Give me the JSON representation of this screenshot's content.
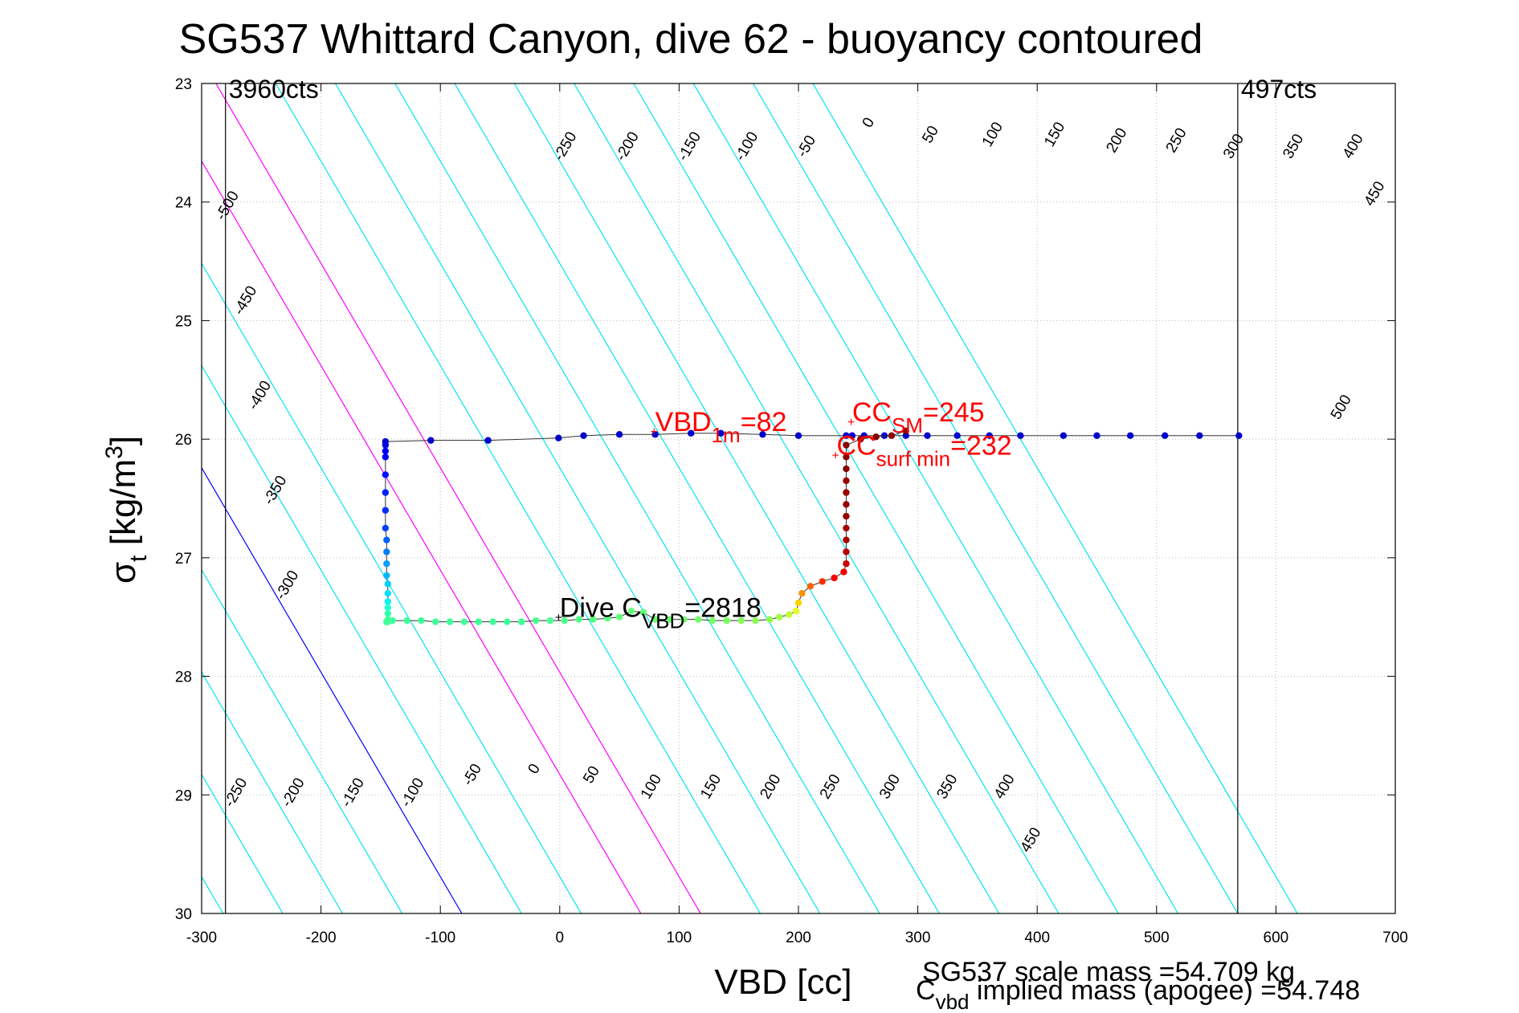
{
  "chart_data": {
    "type": "scatter",
    "title": "SG537 Whittard Canyon, dive 62 - buoyancy contoured",
    "xlabel": "VBD [cc]",
    "ylabel_main": "σ",
    "ylabel_sub": "t",
    "ylabel_unit": " [kg/m",
    "ylabel_sup": "3",
    "ylabel_close": "]",
    "xlim": [
      -300,
      700
    ],
    "ylim": [
      23,
      30
    ],
    "y_reversed": true,
    "grid": true,
    "x_ticks": [
      -300,
      -200,
      -100,
      0,
      100,
      200,
      300,
      400,
      500,
      600,
      700
    ],
    "y_ticks": [
      23,
      24,
      25,
      26,
      27,
      28,
      29,
      30
    ],
    "contour_slope_cc_per_sigma": 58,
    "contour_zero_x_at_sigma30": -82,
    "contour_levels": [
      -500,
      -450,
      -400,
      -350,
      -300,
      -250,
      -200,
      -150,
      -100,
      -50,
      0,
      50,
      100,
      150,
      200,
      250,
      300,
      350,
      400,
      450,
      500
    ],
    "contour_colors": {
      "default": "#00e5ee",
      "zero": "#0000ff",
      "highlight": "#ff00ff"
    },
    "highlight_levels": [
      150,
      200
    ],
    "upper_labels": [
      {
        "level": -500,
        "x": -275,
        "y": 24.05
      },
      {
        "level": -450,
        "x": -260,
        "y": 24.85
      },
      {
        "level": -400,
        "x": -248,
        "y": 25.65
      },
      {
        "level": -350,
        "x": -235,
        "y": 26.45
      },
      {
        "level": -300,
        "x": -225,
        "y": 27.25
      },
      {
        "level": -250,
        "x": 8,
        "y": 23.55
      },
      {
        "level": -200,
        "x": 60,
        "y": 23.55
      },
      {
        "level": -150,
        "x": 112,
        "y": 23.55
      },
      {
        "level": -100,
        "x": 160,
        "y": 23.55
      },
      {
        "level": -50,
        "x": 210,
        "y": 23.55
      },
      {
        "level": 0,
        "x": 262,
        "y": 23.35
      },
      {
        "level": 50,
        "x": 314,
        "y": 23.45
      },
      {
        "level": 100,
        "x": 366,
        "y": 23.45
      },
      {
        "level": 150,
        "x": 418,
        "y": 23.45
      },
      {
        "level": 200,
        "x": 470,
        "y": 23.5
      },
      {
        "level": 250,
        "x": 520,
        "y": 23.5
      },
      {
        "level": 300,
        "x": 568,
        "y": 23.55
      },
      {
        "level": 350,
        "x": 618,
        "y": 23.55
      },
      {
        "level": 400,
        "x": 668,
        "y": 23.55
      },
      {
        "level": 450,
        "x": 686,
        "y": 23.95
      },
      {
        "level": 500,
        "x": 658,
        "y": 25.75
      }
    ],
    "lower_labels": [
      {
        "level": -250,
        "x": -268,
        "y": 29.0
      },
      {
        "level": -200,
        "x": -220,
        "y": 29.0
      },
      {
        "level": -150,
        "x": -170,
        "y": 29.0
      },
      {
        "level": -100,
        "x": -120,
        "y": 29.0
      },
      {
        "level": -50,
        "x": -70,
        "y": 28.85
      },
      {
        "level": 0,
        "x": -18,
        "y": 28.8
      },
      {
        "level": 50,
        "x": 30,
        "y": 28.85
      },
      {
        "level": 100,
        "x": 80,
        "y": 28.95
      },
      {
        "level": 150,
        "x": 130,
        "y": 28.95
      },
      {
        "level": 200,
        "x": 180,
        "y": 28.95
      },
      {
        "level": 250,
        "x": 230,
        "y": 28.95
      },
      {
        "level": 300,
        "x": 280,
        "y": 28.95
      },
      {
        "level": 350,
        "x": 328,
        "y": 28.95
      },
      {
        "level": 400,
        "x": 376,
        "y": 28.95
      },
      {
        "level": 450,
        "x": 398,
        "y": 29.4
      }
    ],
    "vlines": [
      {
        "x": -280,
        "label": "3960cts"
      },
      {
        "x": 568,
        "label": "497cts"
      }
    ],
    "series": [
      {
        "x": [
          569,
          536,
          507,
          478,
          450,
          422,
          386,
          360,
          333,
          308,
          290,
          272,
          255,
          245,
          240,
          200,
          170,
          135,
          110,
          80,
          50,
          20,
          -1,
          -60,
          -108,
          -146,
          -146,
          -146,
          -146,
          -146,
          -146,
          -146,
          -146,
          -145,
          -145,
          -145,
          -145,
          -144,
          -144,
          -144,
          -144,
          -144,
          -144,
          -144,
          -144,
          -145,
          -145,
          -145,
          -145,
          -145
        ],
        "y": [
          25.97,
          25.97,
          25.97,
          25.97,
          25.97,
          25.97,
          25.97,
          25.97,
          25.97,
          25.97,
          25.97,
          25.97,
          25.97,
          25.97,
          25.97,
          25.97,
          25.96,
          25.95,
          25.95,
          25.96,
          25.96,
          25.97,
          25.99,
          26.01,
          26.01,
          26.02,
          26.05,
          26.1,
          26.15,
          26.3,
          26.45,
          26.6,
          26.75,
          26.85,
          26.95,
          27.05,
          27.15,
          27.22,
          27.3,
          27.37,
          27.42,
          27.47,
          27.52,
          27.53,
          27.54,
          27.54,
          27.54,
          27.54,
          27.54,
          27.54
        ],
        "colors": [
          "#0000cc",
          "#0000cc",
          "#0000cc",
          "#0000cc",
          "#0000cc",
          "#0000cc",
          "#0000cc",
          "#0000cc",
          "#0000cc",
          "#0000cc",
          "#0000cc",
          "#0000cc",
          "#0000cc",
          "#0000cc",
          "#0000cc",
          "#0000cc",
          "#0000cc",
          "#0000cc",
          "#0000cc",
          "#0000cc",
          "#0000cc",
          "#0000cc",
          "#0000cc",
          "#0000cc",
          "#0000cc",
          "#0000cc",
          "#0000dd",
          "#0000ee",
          "#0000ff",
          "#0010ff",
          "#0020ff",
          "#0030ff",
          "#0040ff",
          "#0060ff",
          "#0080ff",
          "#00a0ff",
          "#00b8ff",
          "#00cfff",
          "#00e0ff",
          "#10f0f0",
          "#20ffd0",
          "#30ffb0",
          "#40ff9a",
          "#40ff9a",
          "#40ff9a",
          "#40ff9a",
          "#40ff9a",
          "#40ff9a",
          "#40ff9a",
          "#40ff9a"
        ]
      },
      {
        "x": [
          -140,
          -128,
          -116,
          -104,
          -92,
          -80,
          -68,
          -56,
          -44,
          -32,
          -20,
          -8,
          4,
          16,
          28,
          40,
          50,
          60,
          70,
          80,
          92,
          104,
          116,
          128,
          140,
          152,
          164,
          176,
          184,
          192,
          198,
          200,
          203,
          210,
          220,
          230,
          238,
          240,
          240,
          240,
          240,
          240,
          240,
          240,
          240,
          240,
          240,
          240,
          252,
          265,
          278,
          290
        ],
        "y": [
          27.53,
          27.53,
          27.53,
          27.54,
          27.54,
          27.54,
          27.54,
          27.54,
          27.54,
          27.54,
          27.53,
          27.53,
          27.53,
          27.52,
          27.52,
          27.51,
          27.5,
          27.45,
          27.46,
          27.52,
          27.52,
          27.52,
          27.52,
          27.53,
          27.53,
          27.53,
          27.53,
          27.52,
          27.5,
          27.48,
          27.45,
          27.38,
          27.3,
          27.24,
          27.2,
          27.17,
          27.12,
          27.05,
          26.95,
          26.85,
          26.75,
          26.65,
          26.55,
          26.45,
          26.35,
          26.25,
          26.15,
          26.05,
          26.0,
          25.98,
          25.97,
          25.93
        ],
        "colors": [
          "#40ff9a",
          "#40ff9a",
          "#40ff9a",
          "#40ff9a",
          "#40ff9a",
          "#40ff9a",
          "#40ff9a",
          "#40ff9a",
          "#40ff9a",
          "#40ff9a",
          "#48ff90",
          "#48ff90",
          "#50ff88",
          "#50ff88",
          "#58ff80",
          "#58ff80",
          "#60ff78",
          "#60ff78",
          "#60ff78",
          "#68ff70",
          "#68ff70",
          "#70ff68",
          "#70ff68",
          "#78ff60",
          "#78ff60",
          "#80ff58",
          "#88ff50",
          "#90ff48",
          "#a0ff40",
          "#c0ff30",
          "#e0ff20",
          "#ffd000",
          "#ff9000",
          "#ff6000",
          "#ff3000",
          "#ff0000",
          "#ee0000",
          "#cc0000",
          "#bb0000",
          "#aa0000",
          "#aa0000",
          "#990000",
          "#990000",
          "#990000",
          "#990000",
          "#880000",
          "#880000",
          "#880000",
          "#880000",
          "#880000",
          "#880000",
          "#880000"
        ]
      }
    ],
    "annotations": [
      {
        "x": 80,
        "y": 25.93,
        "main": "VBD",
        "sub": "1m",
        "tail": "=82",
        "color": "#ff0000"
      },
      {
        "x": 245,
        "y": 25.85,
        "main": "CC",
        "sub": "SM",
        "tail": "=245",
        "color": "#ff0000"
      },
      {
        "x": 232,
        "y": 26.13,
        "main": "CC",
        "sub": "surf min",
        "tail": "=232",
        "color": "#ff0000"
      },
      {
        "x": 0,
        "y": 27.5,
        "main": "Dive C",
        "sub": "VBD",
        "tail": "=2818",
        "color": "#000000"
      }
    ],
    "footer_line1": "SG537 scale mass =54.709 kg",
    "footer_line2_main": "C",
    "footer_line2_sub": "vbd",
    "footer_line2_tail": " implied mass (apogee) =54.748"
  }
}
